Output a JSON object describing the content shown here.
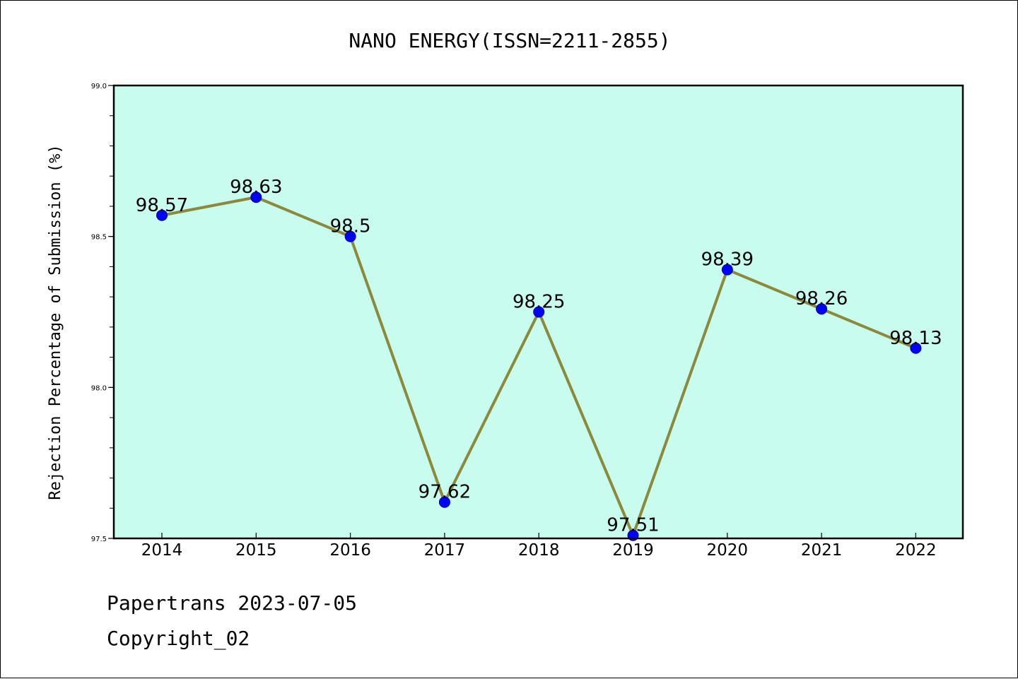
{
  "colors": {
    "plot_background": "#c8fcee",
    "line": "#8b8a3a",
    "marker": "#0000ff"
  },
  "chart_data": {
    "type": "line",
    "title": "NANO ENERGY(ISSN=2211-2855)",
    "xlabel": "",
    "ylabel": "Rejection Percentage of Submission (%)",
    "categories": [
      "2014",
      "2015",
      "2016",
      "2017",
      "2018",
      "2019",
      "2020",
      "2021",
      "2022"
    ],
    "series": [
      {
        "values": [
          98.57,
          98.63,
          98.5,
          97.62,
          98.25,
          97.51,
          98.39,
          98.26,
          98.13
        ],
        "labels": [
          "98.57",
          "98.63",
          "98.5",
          "97.62",
          "98.25",
          "97.51",
          "98.39",
          "98.26",
          "98.13"
        ]
      }
    ],
    "ylim": [
      97.5,
      99.0
    ],
    "yticks": [
      "97.5",
      "98.0",
      "98.5",
      "99.0"
    ],
    "grid": false,
    "legend": "none"
  },
  "footer": {
    "line1": "Papertrans 2023-07-05",
    "line2": "Copyright_02"
  }
}
